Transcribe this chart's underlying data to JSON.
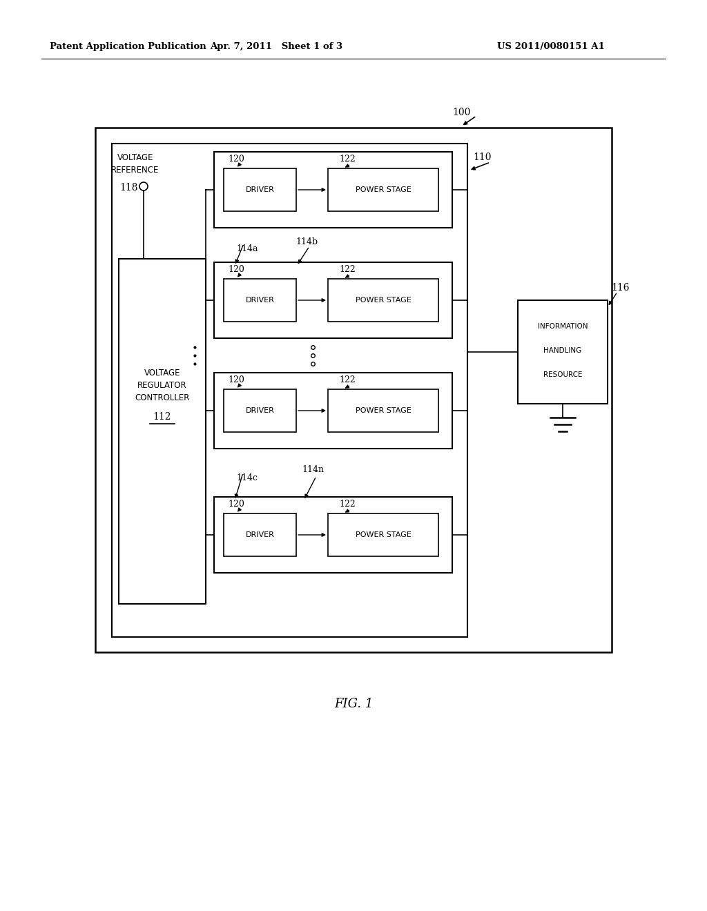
{
  "bg_color": "#ffffff",
  "header_left": "Patent Application Publication",
  "header_mid": "Apr. 7, 2011   Sheet 1 of 3",
  "header_right": "US 2011/0080151 A1",
  "fig_label": "FIG. 1"
}
